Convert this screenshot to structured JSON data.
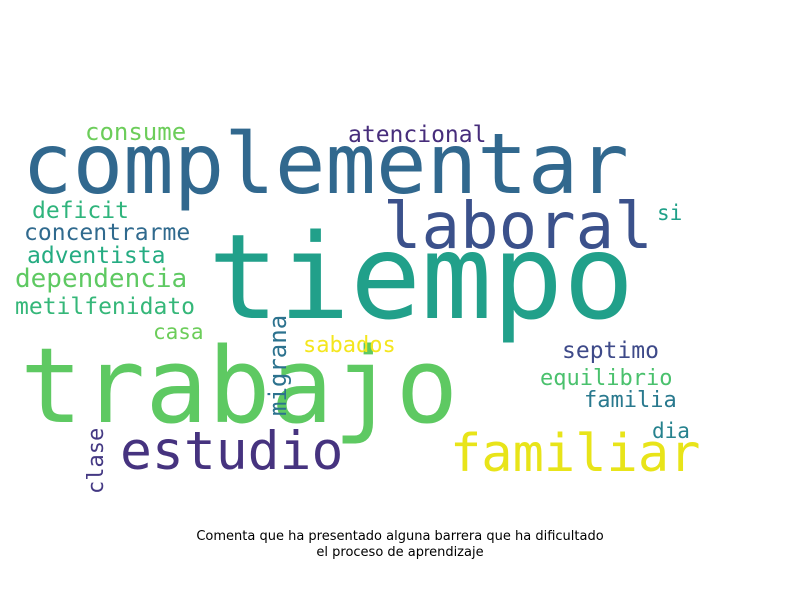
{
  "caption": {
    "line1": "Comenta que ha presentado alguna barrera que ha dificultado",
    "line2": "el proceso de aprendizaje"
  },
  "words": {
    "complementar": {
      "text": "complementar",
      "color": "#31688e"
    },
    "tiempo": {
      "text": "tiempo",
      "color": "#21a08a"
    },
    "trabajo": {
      "text": "trabajo",
      "color": "#5ec962"
    },
    "laboral": {
      "text": "laboral",
      "color": "#3b518b"
    },
    "estudio": {
      "text": "estudio",
      "color": "#46337f"
    },
    "familiar": {
      "text": "familiar",
      "color": "#e8e419"
    },
    "consume": {
      "text": "consume",
      "color": "#6ccd5a"
    },
    "atencional": {
      "text": "atencional",
      "color": "#472d7b"
    },
    "deficit": {
      "text": "deficit",
      "color": "#2fb47c"
    },
    "si": {
      "text": "si",
      "color": "#1fa088"
    },
    "concentrarme": {
      "text": "concentrarme",
      "color": "#306a8e"
    },
    "adventista": {
      "text": "adventista",
      "color": "#25ac82"
    },
    "dependencia": {
      "text": "dependencia",
      "color": "#5ec962"
    },
    "metilfenidato": {
      "text": "metilfenidato",
      "color": "#35b779"
    },
    "casa": {
      "text": "casa",
      "color": "#6ccd5a"
    },
    "sabados": {
      "text": "sabados",
      "color": "#f4e61e"
    },
    "septimo": {
      "text": "septimo",
      "color": "#3e4a89"
    },
    "equilibrio": {
      "text": "equilibrio",
      "color": "#4ac16d"
    },
    "familia": {
      "text": "familia",
      "color": "#29798e"
    },
    "dia": {
      "text": "dia",
      "color": "#26828e"
    },
    "migrana": {
      "text": "migrana",
      "color": "#2c728e"
    },
    "clase": {
      "text": "clase",
      "color": "#443983"
    }
  }
}
